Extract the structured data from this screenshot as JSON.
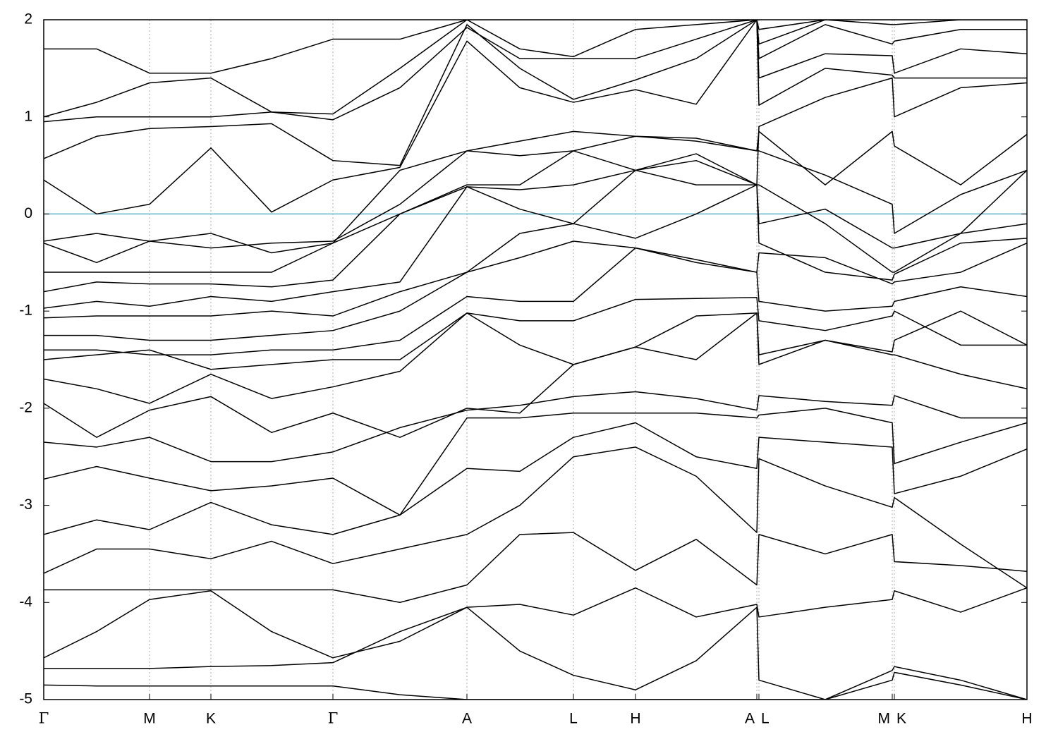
{
  "chart_data": {
    "type": "line",
    "color": "#000000",
    "hline": {
      "value": 0,
      "color": "#5fb4c8"
    },
    "grid": true,
    "xlim": [
      0,
      1394
    ],
    "ylim": [
      -5,
      2
    ],
    "yticks": [
      -5,
      -4,
      -3,
      -2,
      -1,
      0,
      1,
      2
    ],
    "xticks": [
      {
        "value": 0,
        "label": "Γ"
      },
      {
        "value": 150,
        "label": "M"
      },
      {
        "value": 237,
        "label": "K"
      },
      {
        "value": 410,
        "label": "Γ"
      },
      {
        "value": 600,
        "label": "A"
      },
      {
        "value": 751,
        "label": "L"
      },
      {
        "value": 839,
        "label": "H"
      },
      {
        "value": 1011,
        "label": "A"
      },
      {
        "value": 1014,
        "label": "L"
      },
      {
        "value": 1203,
        "label": "M"
      },
      {
        "value": 1206,
        "label": "K"
      },
      {
        "value": 1394,
        "label": "H"
      }
    ],
    "x": [
      0,
      75,
      150,
      237,
      323,
      410,
      505,
      600,
      675,
      751,
      839,
      925,
      1011,
      1014,
      1108,
      1203,
      1206,
      1300,
      1394
    ],
    "series": [
      {
        "values": [
          -4.85,
          -4.86,
          -4.86,
          -4.86,
          -4.86,
          -4.86,
          -4.95,
          -5.0,
          -5.0,
          -5.0,
          -5.0,
          -5.0,
          -5.0,
          -5.0,
          -5.0,
          -4.8,
          -4.72,
          -4.85,
          -5.0
        ]
      },
      {
        "values": [
          -4.57,
          -4.3,
          -3.97,
          -3.88,
          -4.3,
          -4.57,
          -4.4,
          -4.05,
          -4.5,
          -4.75,
          -4.9,
          -4.6,
          -4.05,
          -4.8,
          -5.0,
          -4.7,
          -4.66,
          -4.8,
          -5.0
        ]
      },
      {
        "values": [
          -4.68,
          -4.68,
          -4.68,
          -4.66,
          -4.65,
          -4.62,
          -4.3,
          -4.05,
          -4.02,
          -4.13,
          -3.85,
          -4.15,
          -4.02,
          -4.15,
          -4.05,
          -3.97,
          -3.88,
          -4.1,
          -3.85
        ]
      },
      {
        "values": [
          -3.87,
          -3.87,
          -3.87,
          -3.87,
          -3.87,
          -3.87,
          -4.0,
          -3.82,
          -3.3,
          -3.28,
          -3.67,
          -3.35,
          -3.82,
          -3.3,
          -3.5,
          -3.3,
          -3.58,
          -3.62,
          -3.68
        ]
      },
      {
        "values": [
          -3.7,
          -3.45,
          -3.45,
          -3.55,
          -3.37,
          -3.6,
          -3.45,
          -3.3,
          -3.0,
          -2.5,
          -2.4,
          -2.7,
          -3.28,
          -2.52,
          -2.8,
          -3.02,
          -2.92,
          -3.4,
          -3.85
        ]
      },
      {
        "values": [
          -3.3,
          -3.15,
          -3.25,
          -2.97,
          -3.2,
          -3.3,
          -3.1,
          -2.62,
          -2.65,
          -2.3,
          -2.15,
          -2.5,
          -2.62,
          -2.3,
          -2.35,
          -2.4,
          -2.88,
          -2.7,
          -2.42
        ]
      },
      {
        "values": [
          -2.73,
          -2.6,
          -2.72,
          -2.85,
          -2.8,
          -2.72,
          -3.1,
          -2.1,
          -2.1,
          -2.05,
          -2.05,
          -2.05,
          -2.1,
          -2.07,
          -2.0,
          -2.15,
          -2.57,
          -2.35,
          -2.15
        ]
      },
      {
        "values": [
          -2.35,
          -2.4,
          -2.3,
          -2.55,
          -2.55,
          -2.45,
          -2.2,
          -2.02,
          -1.97,
          -1.88,
          -1.83,
          -1.9,
          -2.02,
          -1.87,
          -1.93,
          -1.97,
          -1.87,
          -2.1,
          -2.1
        ]
      },
      {
        "values": [
          -1.95,
          -2.3,
          -2.02,
          -1.88,
          -2.25,
          -2.05,
          -2.3,
          -2.0,
          -2.05,
          -1.55,
          -1.37,
          -1.5,
          -1.02,
          -1.55,
          -1.3,
          -1.45,
          -1.45,
          -1.65,
          -1.8
        ]
      },
      {
        "values": [
          -1.7,
          -1.8,
          -1.95,
          -1.65,
          -1.9,
          -1.78,
          -1.62,
          -1.02,
          -1.35,
          -1.55,
          -1.37,
          -1.05,
          -1.02,
          -1.45,
          -1.3,
          -1.42,
          -1.3,
          -1.0,
          -1.35
        ]
      },
      {
        "values": [
          -1.5,
          -1.45,
          -1.4,
          -1.6,
          -1.55,
          -1.5,
          -1.5,
          -1.02,
          -1.1,
          -1.1,
          -0.88,
          -0.87,
          -0.86,
          -1.1,
          -1.2,
          -1.05,
          -1.0,
          -1.35,
          -1.35
        ]
      },
      {
        "values": [
          -1.4,
          -1.4,
          -1.45,
          -1.45,
          -1.4,
          -1.4,
          -1.3,
          -0.85,
          -0.9,
          -0.9,
          -0.35,
          -0.5,
          -0.6,
          -0.9,
          -1.0,
          -0.95,
          -0.9,
          -0.75,
          -0.85
        ]
      },
      {
        "values": [
          -1.25,
          -1.25,
          -1.3,
          -1.3,
          -1.25,
          -1.2,
          -1.0,
          -0.6,
          -0.45,
          -0.28,
          -0.35,
          -0.47,
          -0.6,
          -0.4,
          -0.45,
          -0.72,
          -0.7,
          -0.6,
          -0.3
        ]
      },
      {
        "values": [
          -1.07,
          -1.05,
          -1.05,
          -1.05,
          -1.0,
          -1.05,
          -0.8,
          -0.6,
          -0.2,
          -0.1,
          -0.25,
          0.0,
          0.3,
          -0.3,
          -0.6,
          -0.68,
          -0.62,
          -0.3,
          -0.25
        ]
      },
      {
        "values": [
          -0.97,
          -0.9,
          -0.95,
          -0.85,
          -0.9,
          -0.8,
          -0.7,
          0.28,
          0.05,
          -0.1,
          0.45,
          0.3,
          0.3,
          -0.1,
          0.05,
          -0.35,
          -0.35,
          -0.2,
          -0.1
        ]
      },
      {
        "values": [
          -0.8,
          -0.7,
          -0.72,
          -0.72,
          -0.75,
          -0.68,
          0.0,
          0.28,
          0.25,
          0.3,
          0.45,
          0.55,
          0.3,
          0.3,
          -0.1,
          -0.6,
          -0.6,
          -0.2,
          0.45
        ]
      },
      {
        "values": [
          -0.6,
          -0.6,
          -0.6,
          -0.6,
          -0.6,
          -0.3,
          0.0,
          0.3,
          0.3,
          0.65,
          0.8,
          0.75,
          0.65,
          0.65,
          0.4,
          0.1,
          -0.2,
          0.2,
          0.45
        ]
      },
      {
        "values": [
          -0.3,
          -0.5,
          -0.28,
          -0.35,
          -0.3,
          -0.28,
          0.1,
          0.65,
          0.75,
          0.85,
          0.8,
          0.78,
          0.65,
          0.85,
          0.3,
          0.85,
          0.7,
          0.3,
          0.82
        ]
      },
      {
        "values": [
          -0.28,
          -0.2,
          -0.28,
          -0.2,
          -0.4,
          -0.3,
          0.45,
          0.65,
          0.6,
          0.65,
          0.45,
          0.62,
          0.3,
          0.9,
          1.2,
          1.4,
          1.0,
          1.3,
          1.35
        ]
      },
      {
        "values": [
          0.35,
          0.0,
          0.1,
          0.68,
          0.02,
          0.35,
          0.48,
          1.78,
          1.3,
          1.15,
          1.28,
          1.13,
          2.0,
          1.12,
          1.5,
          1.43,
          1.4,
          1.4,
          1.4
        ]
      },
      {
        "values": [
          0.57,
          0.8,
          0.88,
          0.9,
          0.93,
          0.55,
          0.5,
          1.95,
          1.5,
          1.18,
          1.38,
          1.6,
          2.0,
          1.4,
          1.65,
          1.63,
          1.45,
          1.7,
          1.65
        ]
      },
      {
        "values": [
          0.95,
          1.0,
          1.0,
          1.0,
          1.05,
          0.97,
          1.3,
          1.92,
          1.6,
          1.6,
          1.6,
          1.8,
          2.0,
          1.6,
          1.95,
          1.75,
          1.78,
          1.9,
          1.9
        ]
      },
      {
        "values": [
          1.0,
          1.15,
          1.35,
          1.4,
          1.05,
          1.03,
          1.5,
          2.0,
          1.7,
          1.62,
          1.9,
          1.95,
          2.0,
          1.75,
          2.0,
          1.95,
          1.95,
          2.0,
          2.0
        ]
      },
      {
        "values": [
          1.7,
          1.7,
          1.45,
          1.45,
          1.6,
          1.8,
          1.8,
          2.0,
          2.0,
          2.0,
          2.0,
          2.0,
          2.0,
          1.9,
          2.0,
          2.0,
          2.0,
          2.0,
          2.0
        ]
      }
    ]
  }
}
